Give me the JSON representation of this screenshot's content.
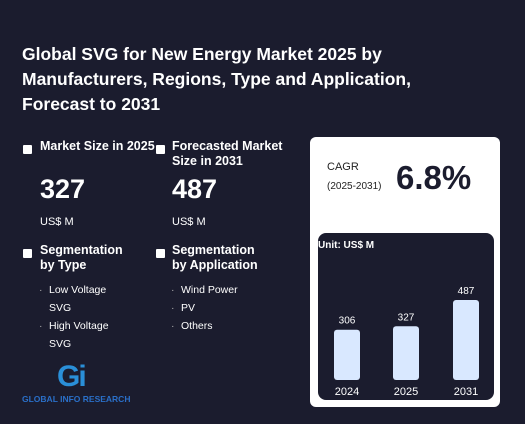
{
  "header": {
    "title": "Global SVG for New Energy Market 2025 by Manufacturers, Regions, Type and Application, Forecast to 2031"
  },
  "stats": [
    {
      "label": "Market Size in 2025",
      "value": 327,
      "unit": "US$ M"
    },
    {
      "label": "Forecasted Market Size in 2031",
      "value": 487,
      "unit": "US$ M"
    }
  ],
  "segments": [
    {
      "label": "Segmentation by Type",
      "items": [
        "Low Voltage SVG",
        "High Voltage SVG"
      ]
    },
    {
      "label": "Segmentation by Application",
      "items": [
        "Wind Power",
        "PV",
        "Others"
      ]
    }
  ],
  "cagr": {
    "label": "CAGR",
    "period": "(2025-2031)",
    "value": "6.8%"
  },
  "chart_data": {
    "type": "bar",
    "subtitle": "Unit: US$ M",
    "categories": [
      "2024",
      "2025",
      "2031"
    ],
    "values": [
      306,
      327,
      487
    ],
    "color": "#d9e8ff"
  },
  "logo": {
    "mark": "Gi",
    "name": "GLOBAL INFO RESEARCH"
  }
}
